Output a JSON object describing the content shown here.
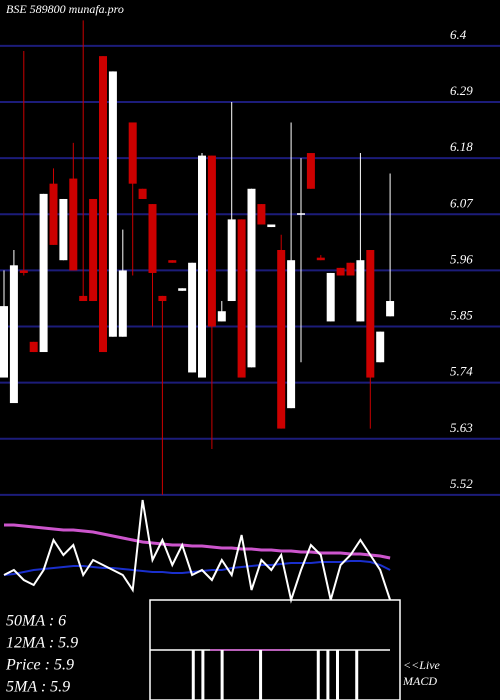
{
  "chart_data": {
    "type": "candlestick",
    "title": "BSE 589800 munafa.pro",
    "ylim": [
      5.51,
      6.49
    ],
    "yticks": [
      6.4,
      6.29,
      6.18,
      6.07,
      5.96,
      5.85,
      5.74,
      5.63,
      5.52
    ],
    "grid": true,
    "up_color": "#ffffff",
    "down_color": "#cc0000",
    "grid_color": "#1c1c7a",
    "open": [
      5.75,
      5.7,
      5.96,
      5.82,
      5.8,
      6.13,
      5.98,
      6.14,
      5.91,
      6.1,
      6.38,
      5.83,
      5.83,
      6.25,
      6.12,
      6.09,
      5.91,
      5.98,
      5.92,
      5.76,
      5.75,
      6.185,
      5.86,
      5.9,
      6.06,
      5.77,
      6.09,
      6.045,
      6.0,
      5.69,
      6.07,
      6.19,
      5.985,
      5.86,
      5.965,
      5.975,
      5.86,
      6.0,
      5.78,
      5.87
    ],
    "high": [
      5.96,
      6.0,
      6.39,
      5.82,
      6.11,
      6.16,
      6.1,
      6.21,
      6.45,
      6.1,
      6.38,
      6.35,
      6.04,
      6.25,
      6.12,
      6.09,
      5.91,
      5.98,
      5.925,
      5.975,
      6.19,
      6.185,
      5.9,
      6.29,
      6.06,
      6.12,
      6.09,
      6.05,
      6.03,
      6.25,
      6.18,
      6.19,
      5.99,
      5.955,
      5.965,
      5.975,
      6.19,
      6.0,
      5.84,
      6.15
    ],
    "low": [
      5.75,
      5.7,
      5.95,
      5.8,
      5.8,
      6.01,
      5.98,
      5.96,
      5.9,
      5.9,
      5.8,
      5.83,
      5.83,
      5.95,
      6.1,
      5.85,
      5.52,
      5.975,
      5.92,
      5.76,
      5.75,
      5.61,
      5.86,
      5.9,
      5.75,
      5.77,
      6.05,
      6.045,
      5.65,
      5.69,
      5.78,
      6.12,
      5.98,
      5.86,
      5.95,
      5.95,
      5.86,
      5.65,
      5.78,
      5.87
    ],
    "close": [
      5.89,
      5.97,
      5.955,
      5.8,
      6.11,
      6.01,
      6.1,
      5.96,
      5.9,
      5.9,
      5.8,
      6.35,
      5.96,
      6.13,
      6.1,
      5.955,
      5.9,
      5.975,
      5.925,
      5.975,
      6.185,
      5.85,
      5.88,
      6.06,
      5.75,
      6.12,
      6.05,
      6.05,
      5.65,
      5.98,
      6.072,
      6.12,
      5.98,
      5.955,
      5.95,
      5.95,
      5.98,
      5.75,
      5.84,
      5.9
    ],
    "indicator": {
      "ylim": [
        0,
        100
      ],
      "series": [
        {
          "color": "#cc55cc",
          "values": [
            75,
            75,
            74,
            73,
            72,
            71,
            70,
            70,
            69,
            68,
            66,
            64,
            62,
            60,
            58,
            57,
            56,
            55,
            55,
            54,
            54,
            53,
            52,
            52,
            51,
            51,
            50,
            50,
            49,
            49,
            48,
            48,
            47,
            47,
            47,
            46,
            46,
            45,
            44,
            42
          ]
        },
        {
          "color": "#1a2fcc",
          "values": [
            25,
            26,
            28,
            30,
            31,
            32,
            33,
            34,
            34,
            33,
            32,
            32,
            31,
            30,
            29,
            28,
            28,
            27,
            27,
            28,
            29,
            30,
            30,
            32,
            33,
            34,
            35,
            35,
            36,
            37,
            37,
            37,
            38,
            38,
            38,
            39,
            39,
            38,
            35,
            30
          ]
        },
        {
          "color": "#ffffff",
          "values": [
            25,
            30,
            20,
            15,
            30,
            60,
            45,
            55,
            25,
            40,
            35,
            30,
            25,
            10,
            100,
            40,
            60,
            35,
            55,
            25,
            30,
            20,
            40,
            25,
            65,
            10,
            40,
            30,
            45,
            0,
            30,
            55,
            45,
            0,
            35,
            45,
            60,
            45,
            30,
            0
          ]
        }
      ]
    },
    "macd": {
      "ylim": [
        -1,
        1
      ],
      "values": [
        0,
        0,
        0,
        0,
        -1,
        -1,
        0,
        -1,
        0,
        0,
        0,
        -1,
        0,
        0,
        0,
        0,
        0,
        -1,
        -1,
        -1,
        0,
        -1,
        0,
        0,
        0,
        0
      ]
    },
    "labels": [
      "50MA : 6",
      "12MA : 5.9",
      "Price   : 5.9",
      "5MA : 5.9"
    ],
    "macd_label": [
      "<<Live",
      "MACD"
    ]
  }
}
